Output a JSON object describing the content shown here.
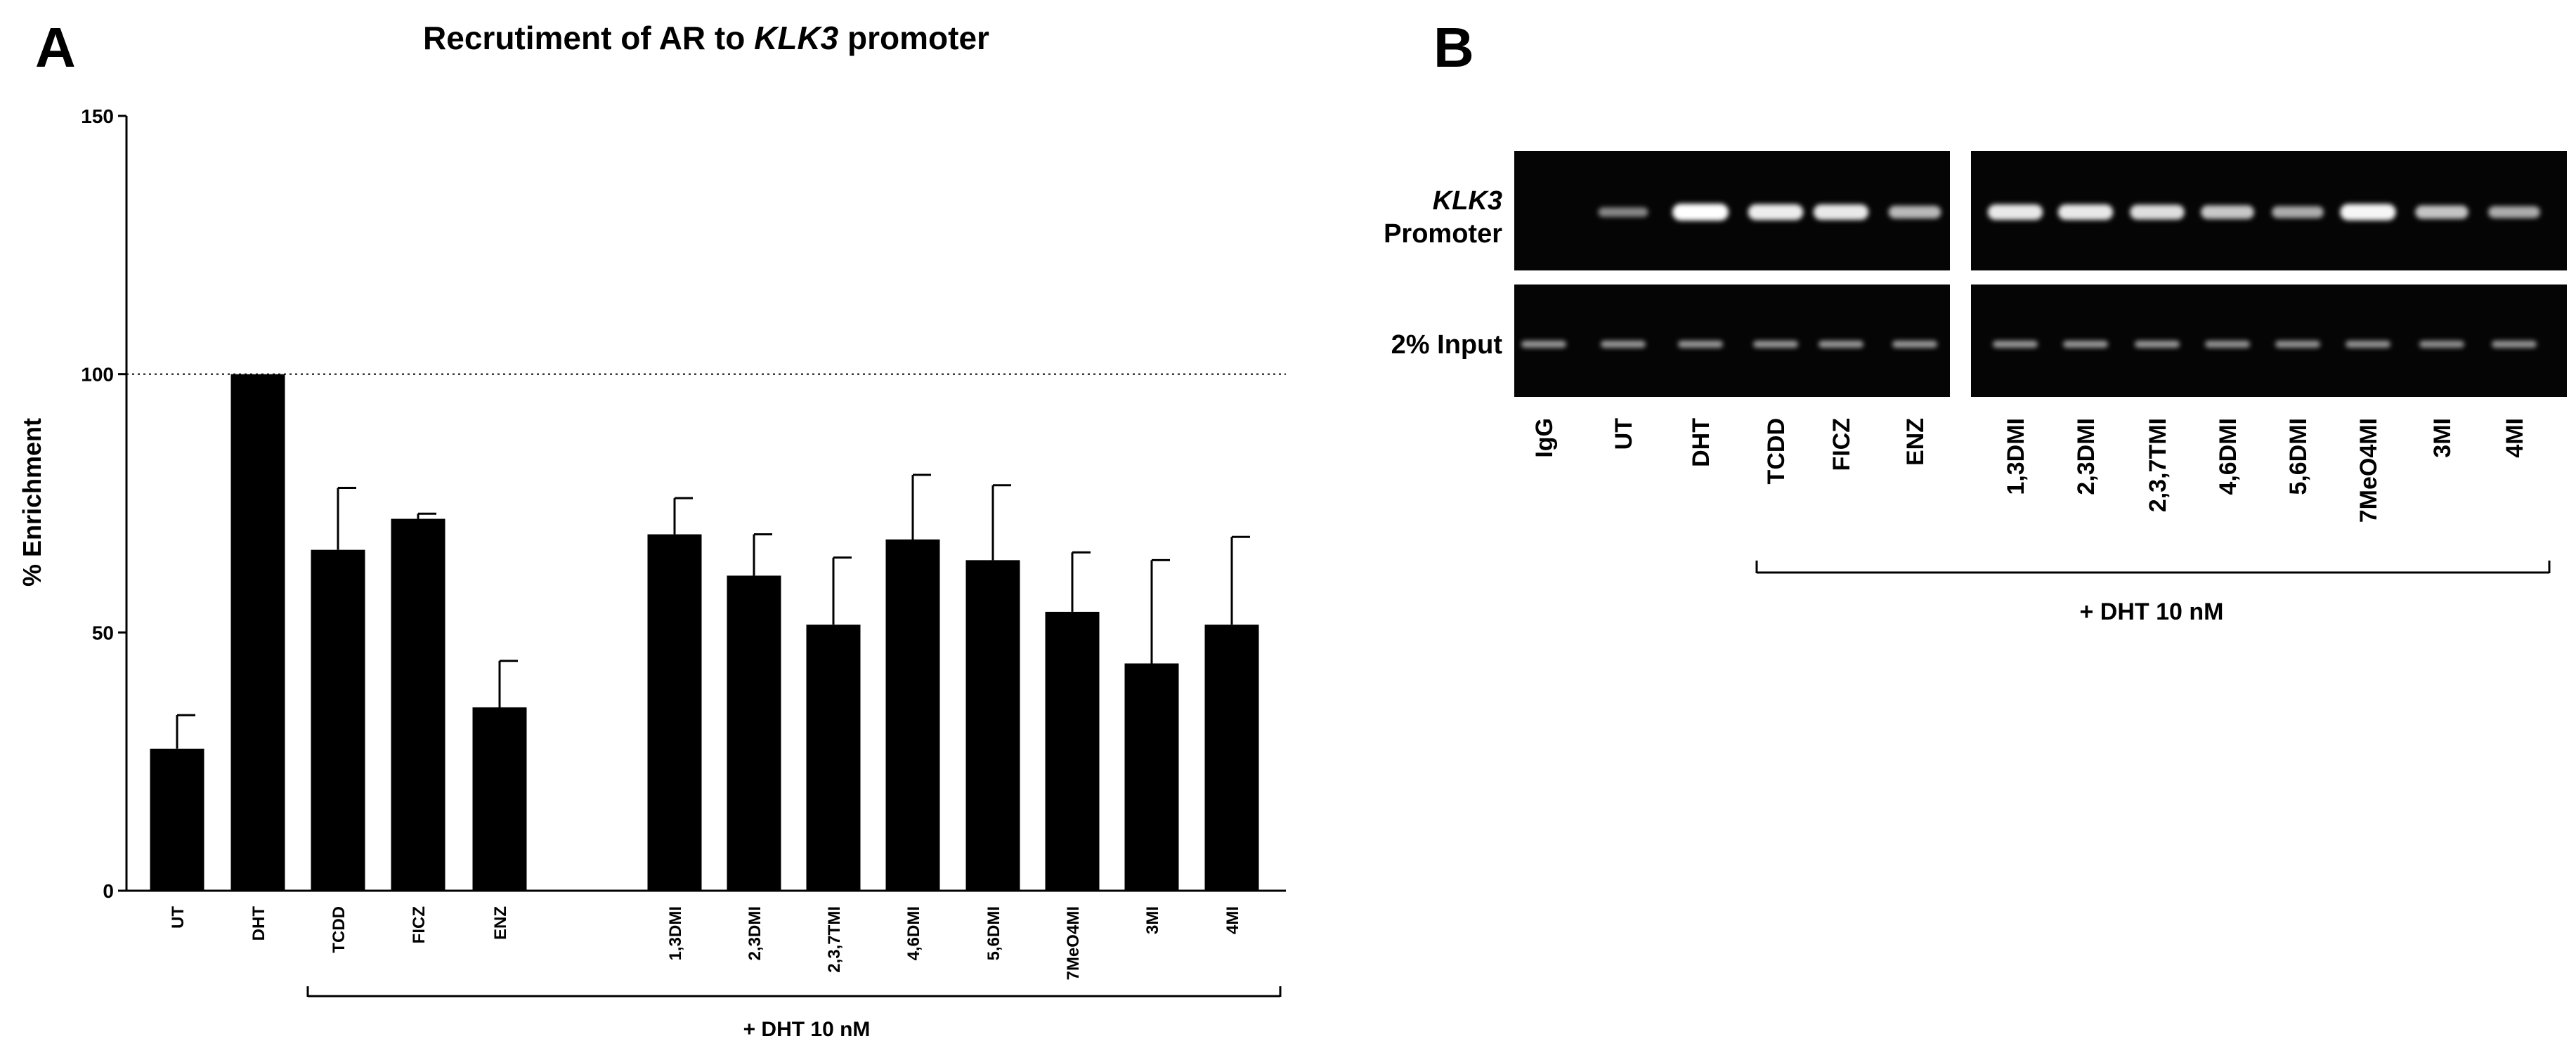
{
  "panel_a": {
    "letter": "A",
    "title_parts": [
      "Recrutiment of AR to ",
      "KLK3",
      " promoter"
    ],
    "treatment_label": "+ DHT 10 nM"
  },
  "panel_b": {
    "letter": "B",
    "row_labels": {
      "klk3_italic": "KLK3",
      "promoter": "Promoter",
      "input": "2% Input"
    },
    "lanes_left": [
      "IgG",
      "UT",
      "DHT",
      "TCDD",
      "FICZ",
      "ENZ"
    ],
    "lanes_right": [
      "1,3DMI",
      "2,3DMI",
      "2,3,7TMI",
      "4,6DMI",
      "5,6DMI",
      "7MeO4MI",
      "3MI",
      "4MI"
    ],
    "treatment_label": "+ DHT 10 nM",
    "band_intensity_klk3_left": [
      0.0,
      0.35,
      1.0,
      0.9,
      0.88,
      0.62
    ],
    "band_intensity_klk3_right": [
      0.88,
      0.88,
      0.82,
      0.7,
      0.55,
      0.95,
      0.68,
      0.55
    ],
    "band_intensity_input_left": [
      0.45,
      0.45,
      0.45,
      0.45,
      0.45,
      0.45
    ],
    "band_intensity_input_right": [
      0.45,
      0.45,
      0.45,
      0.42,
      0.42,
      0.42,
      0.4,
      0.42
    ]
  },
  "chart_data": {
    "type": "bar",
    "title": "Recrutiment of AR to KLK3 promoter",
    "ylabel": "% Enrichment",
    "xlabel": "",
    "ylim": [
      0,
      150
    ],
    "yticks": [
      0,
      50,
      100,
      150
    ],
    "reference_line": 100,
    "categories": [
      "UT",
      "DHT",
      "TCDD",
      "FICZ",
      "ENZ",
      "1,3DMI",
      "2,3DMI",
      "2,3,7TMI",
      "4,6DMI",
      "5,6DMI",
      "7MeO4MI",
      "3MI",
      "4MI"
    ],
    "values": [
      27.5,
      100,
      66,
      72,
      35.5,
      69,
      61,
      51.5,
      68,
      64,
      54,
      44,
      51.5
    ],
    "errors": [
      6.5,
      0,
      12,
      1,
      9,
      7,
      8,
      13,
      12.5,
      14.5,
      11.5,
      20,
      17
    ],
    "color": "#000000"
  }
}
